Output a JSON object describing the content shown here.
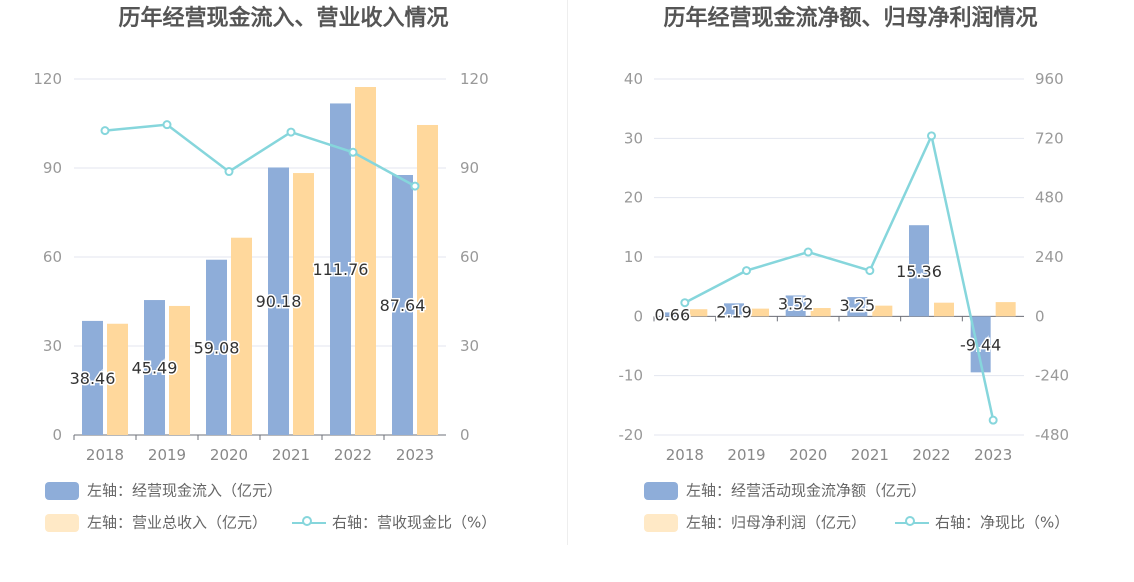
{
  "chart_data": [
    {
      "type": "bar",
      "title": "历年经营现金流入、营业收入情况",
      "categories": [
        "2018",
        "2019",
        "2020",
        "2021",
        "2022",
        "2023"
      ],
      "left_axis": {
        "ticks": [
          "0",
          "30",
          "60",
          "90",
          "120"
        ],
        "ylim": [
          0,
          120
        ]
      },
      "right_axis": {
        "ticks": [
          "0",
          "30",
          "60",
          "90",
          "120"
        ],
        "ylim": [
          0,
          120
        ]
      },
      "series": [
        {
          "name": "左轴：经营现金流入（亿元）",
          "type": "bar",
          "axis": "left",
          "color": "#8eadd9",
          "values": [
            38.46,
            45.49,
            59.08,
            90.18,
            111.76,
            87.64
          ],
          "labels": [
            "38.46",
            "45.49",
            "59.08",
            "90.18",
            "111.76",
            "87.64"
          ]
        },
        {
          "name": "左轴：营业总收入（亿元）",
          "type": "bar",
          "axis": "left",
          "color": "#ffd89c",
          "values": [
            37.5,
            43.5,
            66.5,
            88.3,
            117.3,
            104.5
          ]
        },
        {
          "name": "右轴：营收现金比（%）",
          "type": "line",
          "axis": "right",
          "color": "#86d6dc",
          "values": [
            102.6,
            104.6,
            88.8,
            102.1,
            95.3,
            83.9
          ]
        }
      ],
      "legend_position": "bottom-left"
    },
    {
      "type": "bar",
      "title": "历年经营现金流净额、归母净利润情况",
      "categories": [
        "2018",
        "2019",
        "2020",
        "2021",
        "2022",
        "2023"
      ],
      "left_axis": {
        "ticks": [
          "-20",
          "-10",
          "0",
          "10",
          "20",
          "30",
          "40"
        ],
        "ylim": [
          -20,
          40
        ]
      },
      "right_axis": {
        "ticks": [
          "-480",
          "-240",
          "0",
          "240",
          "480",
          "720",
          "960"
        ],
        "ylim": [
          -480,
          960
        ]
      },
      "series": [
        {
          "name": "左轴：经营活动现金流净额（亿元）",
          "type": "bar",
          "axis": "left",
          "color": "#8eadd9",
          "values": [
            0.66,
            2.19,
            3.52,
            3.25,
            15.36,
            -9.44
          ],
          "labels": [
            "0.66",
            "2.19",
            "3.52",
            "3.25",
            "15.36",
            "-9.44"
          ]
        },
        {
          "name": "左轴：归母净利润（亿元）",
          "type": "bar",
          "axis": "left",
          "color": "#ffd89c",
          "values": [
            1.2,
            1.3,
            1.4,
            1.8,
            2.3,
            2.4
          ]
        },
        {
          "name": "右轴：净现比（%）",
          "type": "line",
          "axis": "right",
          "color": "#86d6dc",
          "values": [
            55,
            185,
            260,
            185,
            730,
            -420
          ]
        }
      ],
      "legend_position": "bottom-left"
    }
  ]
}
